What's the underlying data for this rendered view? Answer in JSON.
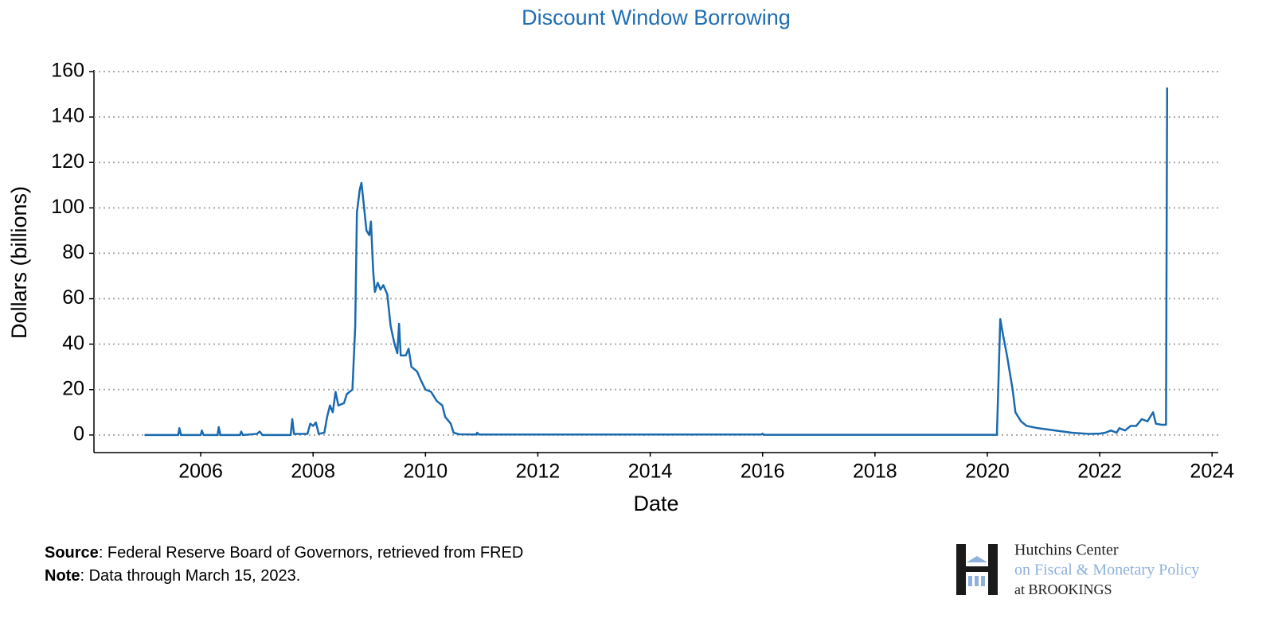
{
  "chart_data": {
    "type": "line",
    "title": "Discount Window Borrowing",
    "xlabel": "Date",
    "ylabel": "Dollars (billions)",
    "x": [
      2005.0,
      2005.6,
      2005.62,
      2005.65,
      2006.0,
      2006.02,
      2006.05,
      2006.3,
      2006.32,
      2006.35,
      2006.7,
      2006.72,
      2006.75,
      2007.0,
      2007.05,
      2007.1,
      2007.6,
      2007.63,
      2007.66,
      2007.9,
      2007.95,
      2008.0,
      2008.05,
      2008.1,
      2008.2,
      2008.25,
      2008.3,
      2008.35,
      2008.4,
      2008.45,
      2008.55,
      2008.6,
      2008.7,
      2008.75,
      2008.78,
      2008.83,
      2008.86,
      2008.9,
      2008.95,
      2009.0,
      2009.03,
      2009.07,
      2009.1,
      2009.15,
      2009.2,
      2009.25,
      2009.32,
      2009.38,
      2009.45,
      2009.5,
      2009.53,
      2009.56,
      2009.65,
      2009.7,
      2009.75,
      2009.85,
      2009.92,
      2010.0,
      2010.1,
      2010.2,
      2010.3,
      2010.35,
      2010.45,
      2010.5,
      2010.6,
      2010.9,
      2010.92,
      2010.95,
      2015.98,
      2016.0,
      2016.02,
      2020.17,
      2020.2,
      2020.23,
      2020.28,
      2020.35,
      2020.45,
      2020.5,
      2020.6,
      2020.7,
      2020.9,
      2021.2,
      2021.5,
      2021.8,
      2022.0,
      2022.1,
      2022.2,
      2022.3,
      2022.35,
      2022.45,
      2022.55,
      2022.65,
      2022.75,
      2022.85,
      2022.95,
      2023.0,
      2023.1,
      2023.18,
      2023.2
    ],
    "series": [
      {
        "name": "Discount Window Borrowing",
        "color": "#1a6aaf",
        "values": [
          0,
          0,
          3,
          0,
          0,
          2,
          0,
          0,
          3.5,
          0,
          0,
          1.5,
          0,
          0.5,
          1.5,
          0,
          0,
          7,
          0.5,
          0.5,
          5,
          4,
          5.5,
          0.5,
          1,
          8,
          13,
          10,
          19,
          13,
          14,
          18,
          20,
          48,
          98,
          108,
          111,
          102,
          90,
          88,
          94,
          72,
          63,
          67,
          64,
          66,
          62,
          48,
          40,
          36,
          49,
          35,
          35,
          38,
          30,
          28,
          24,
          20,
          19,
          15,
          13,
          8,
          5,
          1,
          0.3,
          0.2,
          1,
          0.2,
          0.2,
          0.6,
          0.1,
          0.1,
          25,
          51,
          44,
          35,
          20,
          10,
          6,
          4,
          3,
          2,
          1,
          0.5,
          0.6,
          1,
          2,
          1,
          3,
          2,
          4,
          4,
          7,
          6,
          10,
          5,
          4.5,
          4.5,
          153
        ]
      }
    ],
    "xlim": [
      2004.1,
      2024.11
    ],
    "xticks": [
      2006,
      2008,
      2010,
      2012,
      2014,
      2016,
      2018,
      2020,
      2022,
      2024
    ],
    "ylim": [
      -7.4,
      160
    ],
    "yticks": [
      0,
      20,
      40,
      60,
      80,
      100,
      120,
      140,
      160
    ],
    "grid": true
  },
  "footer": {
    "source_label": "Source",
    "source_text": ": Federal Reserve Board of Governors, retrieved from FRED",
    "note_label": "Note",
    "note_text": ": Data through March 15, 2023."
  },
  "logo": {
    "line1": "Hutchins Center",
    "line2": "on Fiscal & Monetary Policy",
    "line3": "at BROOKINGS"
  }
}
